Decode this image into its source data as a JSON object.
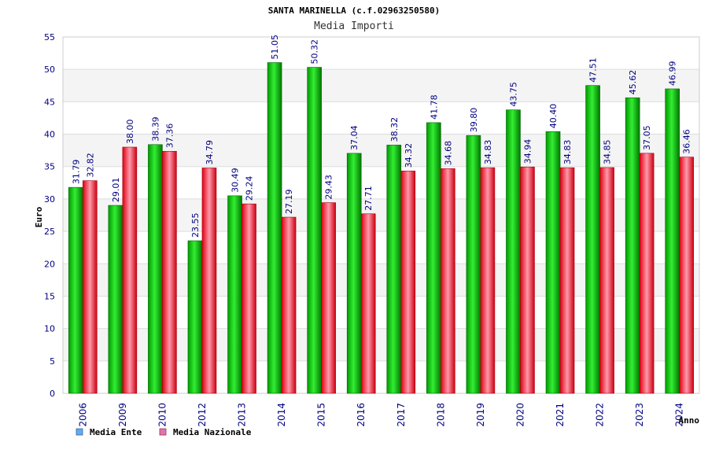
{
  "chart_data": {
    "type": "bar",
    "title": "SANTA MARINELLA (c.f.02963250580)",
    "subtitle": "Media Importi",
    "xlabel": "Anno",
    "ylabel": "Euro",
    "ylim": [
      0,
      55
    ],
    "yticks": [
      0,
      5,
      10,
      15,
      20,
      25,
      30,
      35,
      40,
      45,
      50,
      55
    ],
    "categories": [
      "2006",
      "2009",
      "2010",
      "2012",
      "2013",
      "2014",
      "2015",
      "2016",
      "2017",
      "2018",
      "2019",
      "2020",
      "2021",
      "2022",
      "2023",
      "2024"
    ],
    "series": [
      {
        "name": "Media Ente",
        "values": [
          31.79,
          29.01,
          38.39,
          23.55,
          30.49,
          51.05,
          50.32,
          37.04,
          38.32,
          41.78,
          39.8,
          43.75,
          40.4,
          47.51,
          45.62,
          46.99
        ]
      },
      {
        "name": "Media Nazionale",
        "values": [
          32.82,
          38.0,
          37.36,
          34.79,
          29.24,
          27.19,
          29.43,
          27.71,
          34.32,
          34.68,
          34.83,
          34.94,
          34.83,
          34.85,
          37.05,
          36.46
        ]
      }
    ],
    "value_labels": {
      "ente": [
        "31.79",
        "29.01",
        "38.39",
        "23.55",
        "30.49",
        "51.05",
        "50.32",
        "37.04",
        "38.32",
        "41.78",
        "39.80",
        "43.75",
        "40.40",
        "47.51",
        "45.62",
        "46.99"
      ],
      "nazionale": [
        "32.82",
        "38.00",
        "37.36",
        "34.79",
        "29.24",
        "27.19",
        "29.43",
        "27.71",
        "34.32",
        "34.68",
        "34.83",
        "34.94",
        "34.83",
        "34.85",
        "37.05",
        "36.46"
      ]
    },
    "legend_placement": "bottom-left",
    "grid": true,
    "colors": {
      "ente_bar": "#00cc00",
      "nazionale_bar": "#ee3344",
      "ente_legend": "#66aaee",
      "nazionale_legend": "#dd77aa",
      "band": "#f4f4f4"
    }
  }
}
